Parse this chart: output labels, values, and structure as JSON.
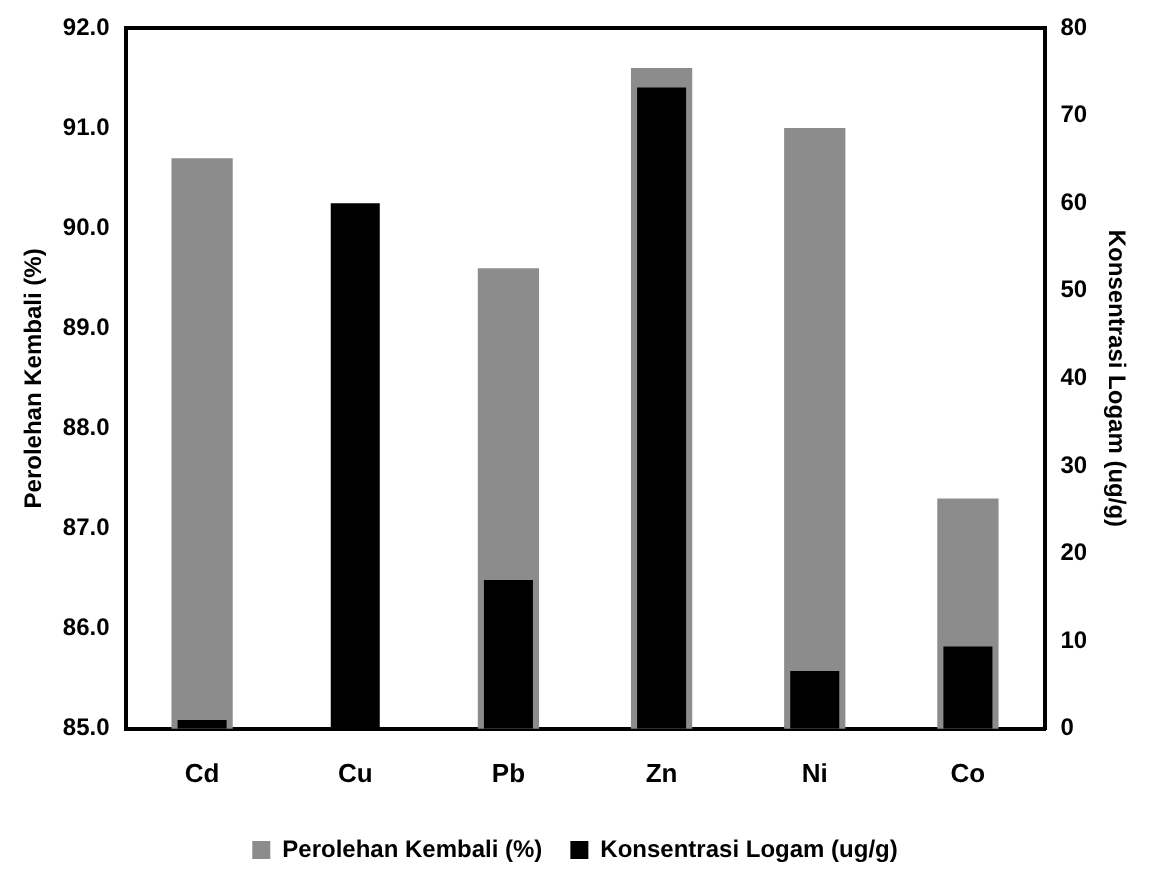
{
  "chart_data": {
    "type": "bar",
    "ylabel": "Perolehan Kembali (%)",
    "y2label": "Konsentrasi Logam (ug/g)",
    "categories": [
      "Cd",
      "Cu",
      "Pb",
      "Zn",
      "Ni",
      "Co"
    ],
    "series": [
      {
        "name": "Perolehan Kembali (%)",
        "color": "#8c8c8c",
        "values": [
          90.7,
          null,
          89.6,
          91.6,
          91.0,
          87.3
        ]
      },
      {
        "name": "Konsentrasi Logam (ug/g)",
        "color": "#000000",
        "axis": "y2",
        "values": [
          1.0,
          60,
          17,
          73.2,
          6.6,
          9.4
        ]
      }
    ],
    "ylim": [
      85,
      92
    ],
    "yticks": [
      {
        "value": 85,
        "label": "85.0"
      },
      {
        "value": 86,
        "label": "86.0"
      },
      {
        "value": 87,
        "label": "87.0"
      },
      {
        "value": 88,
        "label": "88.0"
      },
      {
        "value": 89,
        "label": "89.0"
      },
      {
        "value": 90,
        "label": "90.0"
      },
      {
        "value": 91,
        "label": "91.0"
      },
      {
        "value": 92,
        "label": "92.0"
      }
    ],
    "y2lim": [
      0,
      80
    ],
    "y2ticks": [
      0,
      10,
      20,
      30,
      40,
      50,
      60,
      70,
      80
    ],
    "grid": false,
    "legend": "bottom"
  }
}
